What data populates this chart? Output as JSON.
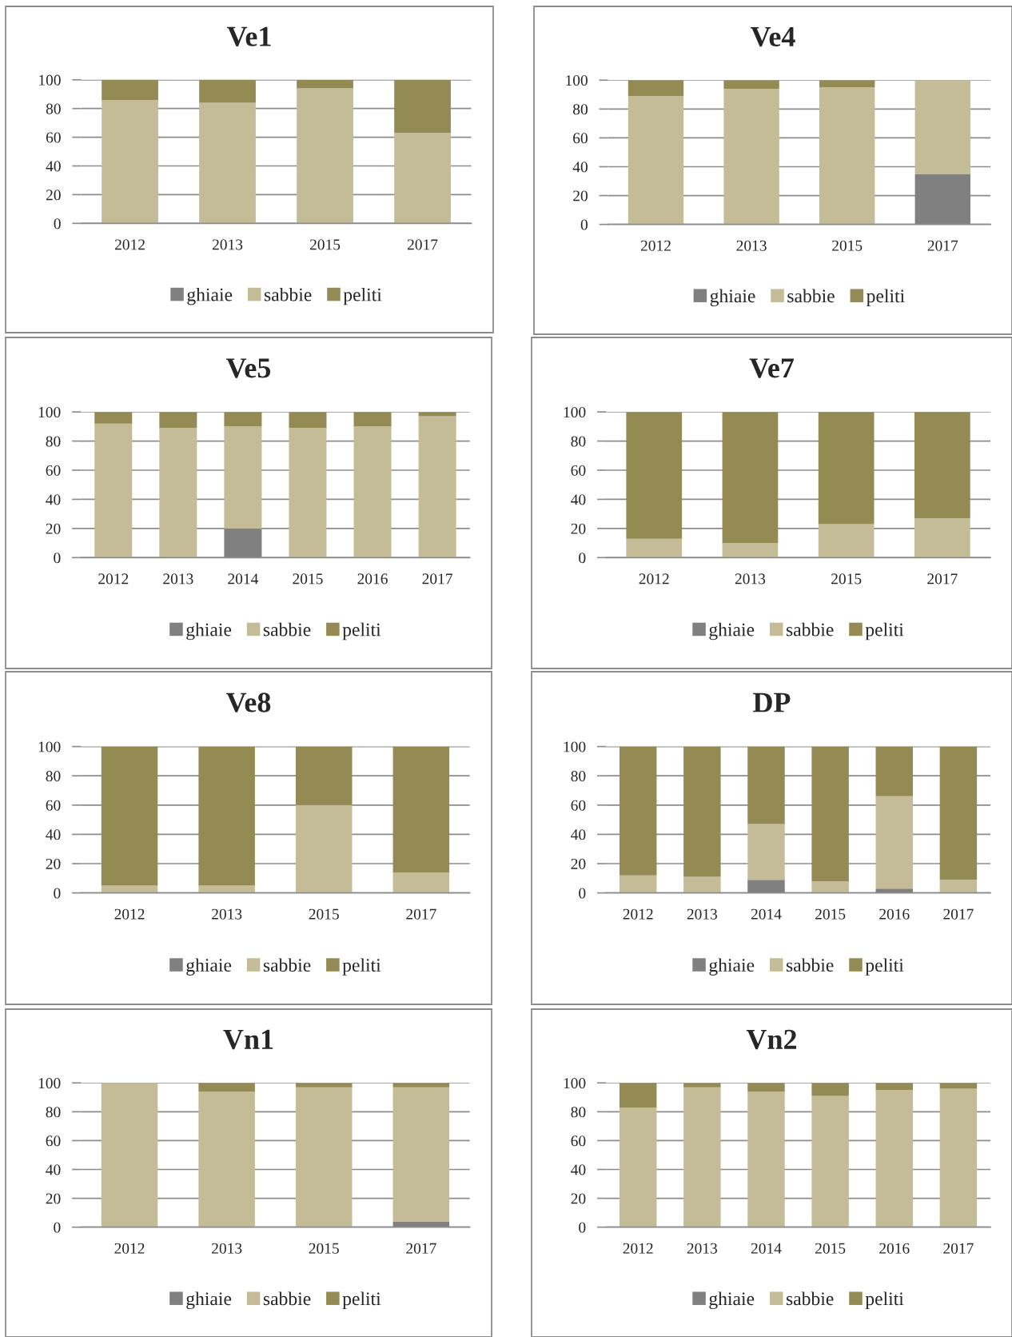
{
  "chart_data": [
    {
      "type": "bar",
      "title": "Ve1",
      "stacked": true,
      "categories": [
        "2012",
        "2013",
        "2015",
        "2017"
      ],
      "ylim": [
        0,
        100
      ],
      "yticks": [
        0,
        20,
        40,
        60,
        80,
        100
      ],
      "grid": "y",
      "legend": "bottom",
      "series": [
        {
          "name": "ghiaie",
          "color": "#808080",
          "values": [
            0,
            0,
            0,
            0
          ]
        },
        {
          "name": "sabbie",
          "color": "#c4bc96",
          "values": [
            86,
            84,
            94,
            63
          ]
        },
        {
          "name": "peliti",
          "color": "#948a54",
          "values": [
            14,
            16,
            6,
            37
          ]
        }
      ]
    },
    {
      "type": "bar",
      "title": "Ve4",
      "stacked": true,
      "categories": [
        "2012",
        "2013",
        "2015",
        "2017"
      ],
      "ylim": [
        0,
        100
      ],
      "yticks": [
        0,
        20,
        40,
        60,
        80,
        100
      ],
      "grid": "y",
      "legend": "bottom",
      "series": [
        {
          "name": "ghiaie",
          "color": "#808080",
          "values": [
            0,
            0,
            0,
            35
          ]
        },
        {
          "name": "sabbie",
          "color": "#c4bc96",
          "values": [
            89,
            94,
            95,
            65
          ]
        },
        {
          "name": "peliti",
          "color": "#948a54",
          "values": [
            11,
            6,
            5,
            0
          ]
        }
      ]
    },
    {
      "type": "bar",
      "title": "Ve5",
      "stacked": true,
      "categories": [
        "2012",
        "2013",
        "2014",
        "2015",
        "2016",
        "2017"
      ],
      "ylim": [
        0,
        100
      ],
      "yticks": [
        0,
        20,
        40,
        60,
        80,
        100
      ],
      "grid": "y",
      "legend": "bottom",
      "series": [
        {
          "name": "ghiaie",
          "color": "#808080",
          "values": [
            0,
            0,
            20,
            0,
            0,
            0
          ]
        },
        {
          "name": "sabbie",
          "color": "#c4bc96",
          "values": [
            92,
            89,
            70,
            89,
            90,
            97
          ]
        },
        {
          "name": "peliti",
          "color": "#948a54",
          "values": [
            8,
            11,
            10,
            11,
            10,
            3
          ]
        }
      ]
    },
    {
      "type": "bar",
      "title": "Ve7",
      "stacked": true,
      "categories": [
        "2012",
        "2013",
        "2015",
        "2017"
      ],
      "ylim": [
        0,
        100
      ],
      "yticks": [
        0,
        20,
        40,
        60,
        80,
        100
      ],
      "grid": "y",
      "legend": "bottom",
      "series": [
        {
          "name": "ghiaie",
          "color": "#808080",
          "values": [
            0,
            0,
            0,
            0
          ]
        },
        {
          "name": "sabbie",
          "color": "#c4bc96",
          "values": [
            13,
            10,
            23,
            27
          ]
        },
        {
          "name": "peliti",
          "color": "#948a54",
          "values": [
            87,
            90,
            77,
            73
          ]
        }
      ]
    },
    {
      "type": "bar",
      "title": "Ve8",
      "stacked": true,
      "categories": [
        "2012",
        "2013",
        "2015",
        "2017"
      ],
      "ylim": [
        0,
        100
      ],
      "yticks": [
        0,
        20,
        40,
        60,
        80,
        100
      ],
      "grid": "y",
      "legend": "bottom",
      "series": [
        {
          "name": "ghiaie",
          "color": "#808080",
          "values": [
            0,
            0,
            0,
            0
          ]
        },
        {
          "name": "sabbie",
          "color": "#c4bc96",
          "values": [
            5,
            5,
            60,
            14
          ]
        },
        {
          "name": "peliti",
          "color": "#948a54",
          "values": [
            95,
            95,
            40,
            86
          ]
        }
      ]
    },
    {
      "type": "bar",
      "title": "DP",
      "stacked": true,
      "categories": [
        "2012",
        "2013",
        "2014",
        "2015",
        "2016",
        "2017"
      ],
      "ylim": [
        0,
        100
      ],
      "yticks": [
        0,
        20,
        40,
        60,
        80,
        100
      ],
      "grid": "y",
      "legend": "bottom",
      "series": [
        {
          "name": "ghiaie",
          "color": "#808080",
          "values": [
            0,
            0,
            9,
            0,
            3,
            0
          ]
        },
        {
          "name": "sabbie",
          "color": "#c4bc96",
          "values": [
            12,
            11,
            38,
            8,
            63,
            9
          ]
        },
        {
          "name": "peliti",
          "color": "#948a54",
          "values": [
            88,
            89,
            53,
            92,
            34,
            91
          ]
        }
      ]
    },
    {
      "type": "bar",
      "title": "Vn1",
      "stacked": true,
      "categories": [
        "2012",
        "2013",
        "2015",
        "2017"
      ],
      "ylim": [
        0,
        100
      ],
      "yticks": [
        0,
        20,
        40,
        60,
        80,
        100
      ],
      "grid": "y",
      "legend": "bottom",
      "series": [
        {
          "name": "ghiaie",
          "color": "#808080",
          "values": [
            0,
            0,
            0,
            4
          ]
        },
        {
          "name": "sabbie",
          "color": "#c4bc96",
          "values": [
            100,
            94,
            97,
            93
          ]
        },
        {
          "name": "peliti",
          "color": "#948a54",
          "values": [
            0,
            6,
            3,
            3
          ]
        }
      ]
    },
    {
      "type": "bar",
      "title": "Vn2",
      "stacked": true,
      "categories": [
        "2012",
        "2013",
        "2014",
        "2015",
        "2016",
        "2017"
      ],
      "ylim": [
        0,
        100
      ],
      "yticks": [
        0,
        20,
        40,
        60,
        80,
        100
      ],
      "grid": "y",
      "legend": "bottom",
      "series": [
        {
          "name": "ghiaie",
          "color": "#808080",
          "values": [
            0,
            0,
            0,
            0,
            0,
            0
          ]
        },
        {
          "name": "sabbie",
          "color": "#c4bc96",
          "values": [
            83,
            97,
            94,
            91,
            95,
            96
          ]
        },
        {
          "name": "peliti",
          "color": "#948a54",
          "values": [
            17,
            3,
            6,
            9,
            5,
            4
          ]
        }
      ]
    }
  ]
}
